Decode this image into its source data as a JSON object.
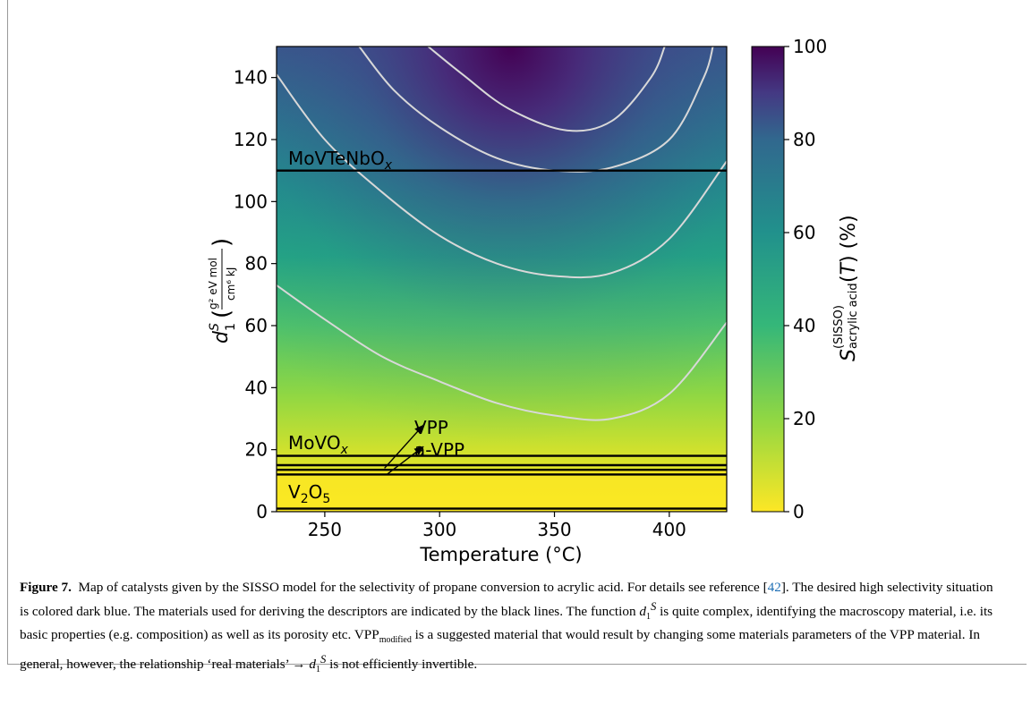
{
  "chart_data": {
    "type": "heatmap",
    "xlabel": "Temperature (°C)",
    "ylabel": "d₁ˢ (g² eV mol / cm⁶ kJ)",
    "xlim": [
      229,
      425
    ],
    "ylim": [
      0,
      150
    ],
    "xticks": [
      250,
      300,
      350,
      400
    ],
    "yticks": [
      0,
      20,
      40,
      60,
      80,
      100,
      120,
      140
    ],
    "colormap": "viridis_r",
    "colorbar": {
      "label": "S(SISSO) acrylic acid (T) (%)",
      "range": [
        0,
        100
      ],
      "ticks": [
        0,
        20,
        40,
        60,
        80,
        100
      ]
    },
    "contour_color": "#d8d8d8",
    "contour_levels": [
      {
        "level": 20,
        "points": [
          [
            229,
            73
          ],
          [
            250,
            62
          ],
          [
            275,
            50
          ],
          [
            300,
            42
          ],
          [
            325,
            35
          ],
          [
            350,
            31
          ],
          [
            375,
            30
          ],
          [
            400,
            38
          ],
          [
            425,
            61
          ]
        ]
      },
      {
        "level": 40,
        "points": [
          [
            229,
            141
          ],
          [
            250,
            120
          ],
          [
            275,
            103
          ],
          [
            300,
            89
          ],
          [
            325,
            80
          ],
          [
            350,
            76
          ],
          [
            375,
            77
          ],
          [
            400,
            88
          ],
          [
            425,
            113
          ]
        ]
      },
      {
        "level": 60,
        "points": [
          [
            265,
            150
          ],
          [
            280,
            136
          ],
          [
            300,
            124
          ],
          [
            325,
            114
          ],
          [
            350,
            110
          ],
          [
            375,
            111
          ],
          [
            400,
            120
          ],
          [
            415,
            140
          ],
          [
            419,
            150
          ]
        ]
      },
      {
        "level": 80,
        "points": [
          [
            295,
            150
          ],
          [
            310,
            141
          ],
          [
            330,
            130
          ],
          [
            355,
            123
          ],
          [
            375,
            126
          ],
          [
            392,
            140
          ],
          [
            398,
            150
          ]
        ]
      }
    ],
    "materials": [
      {
        "name": "MoVTeNbOx",
        "y": 110
      },
      {
        "name": "MoVOx",
        "y": 18
      },
      {
        "name": "VPP",
        "y": 15
      },
      {
        "name": "a-VPP",
        "y": 13.5
      },
      {
        "name": "V2O5",
        "y": 12
      }
    ],
    "material_labels": {
      "movtenbo": "MoVTeNbO",
      "movo": "MoVO",
      "sub_x": "x",
      "vpp": "VPP",
      "avpp": "a-VPP",
      "v2o5_a": "V",
      "v2o5_b": "O",
      "sub_2": "2",
      "sub_5": "5"
    },
    "arrows": [
      {
        "from": [
          276,
          14
        ],
        "to": [
          293,
          28
        ]
      },
      {
        "from": [
          277,
          12
        ],
        "to": [
          293,
          21
        ]
      }
    ]
  },
  "caption": {
    "label": "Figure 7.",
    "part1": "Map of catalysts given by the SISSO model for the selectivity of propane conversion to acrylic acid. For details see reference [",
    "ref": "42",
    "part2": "]. The desired high selectivity situation is colored dark blue. The materials used for deriving the descriptors are indicated by the black lines. The function ",
    "func": "d",
    "func_sub": "1",
    "func_sup": "S",
    "part3": " is quite complex, identifying the macroscopy material, i.e. its basic properties (e.g. composition) as well as its porosity etc. VPP",
    "vpp_sub": "modified",
    "part4": " is a suggested material that would result by changing some materials parameters of the VPP material. In general, however, the relationship ‘real materials’ → ",
    "part5": " is not efficiently invertible."
  }
}
